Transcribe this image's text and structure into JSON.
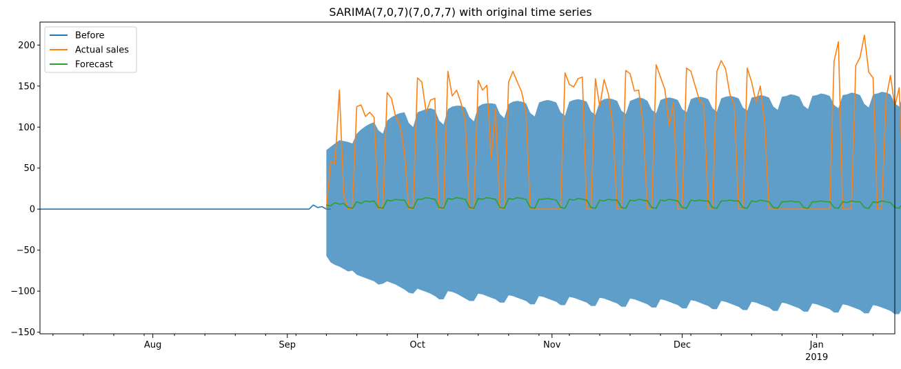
{
  "chart_data": {
    "type": "line",
    "title": "SARIMA(7,0,7)(7,0,7,7) with original time series",
    "xlabel": "",
    "ylabel": "",
    "x_axis": {
      "type": "date",
      "range": [
        "2018-07-06",
        "2019-01-19"
      ],
      "major_ticks": [
        {
          "date": "2018-08-01",
          "label": "Aug",
          "sublabel": ""
        },
        {
          "date": "2018-09-01",
          "label": "Sep",
          "sublabel": ""
        },
        {
          "date": "2018-10-01",
          "label": "Oct",
          "sublabel": ""
        },
        {
          "date": "2018-11-01",
          "label": "Nov",
          "sublabel": ""
        },
        {
          "date": "2018-12-01",
          "label": "Dec",
          "sublabel": ""
        },
        {
          "date": "2019-01-01",
          "label": "Jan",
          "sublabel": "2019"
        }
      ]
    },
    "y_axis": {
      "range": [
        -152,
        228
      ],
      "ticks": [
        -150,
        -100,
        -50,
        0,
        50,
        100,
        150,
        200
      ],
      "tick_labels": [
        "−150",
        "−100",
        "−50",
        "0",
        "50",
        "100",
        "150",
        "200"
      ]
    },
    "grid": false,
    "legend": {
      "position": "top-left",
      "entries": [
        {
          "label": "Before",
          "color": "#1f77b4"
        },
        {
          "label": "Actual sales",
          "color": "#ff7f0e"
        },
        {
          "label": "Forecast",
          "color": "#2ca02c"
        }
      ]
    },
    "series": [
      {
        "name": "Before",
        "color": "#1f77b4",
        "start_date": "2018-07-06",
        "values": [
          0,
          0,
          0,
          0,
          0,
          0,
          0,
          0,
          0,
          0,
          0,
          0,
          0,
          0,
          0,
          0,
          0,
          0,
          0,
          0,
          0,
          0,
          0,
          0,
          0,
          0,
          0,
          0,
          0,
          0,
          0,
          0,
          0,
          0,
          0,
          0,
          0,
          0,
          0,
          0,
          0,
          0,
          0,
          0,
          0,
          0,
          0,
          0,
          0,
          0,
          0,
          0,
          0,
          0,
          0,
          0,
          0,
          0,
          0,
          0,
          0,
          0,
          0,
          5,
          2,
          3,
          0,
          0
        ]
      },
      {
        "name": "Actual sales",
        "color": "#ff7f0e",
        "start_date": "2018-09-10",
        "values": [
          0,
          58,
          55,
          145,
          18,
          0,
          0,
          125,
          127,
          113,
          118,
          112,
          0,
          0,
          142,
          135,
          112,
          102,
          70,
          0,
          0,
          160,
          155,
          118,
          133,
          135,
          0,
          0,
          168,
          138,
          145,
          130,
          108,
          0,
          0,
          157,
          145,
          151,
          62,
          122,
          0,
          0,
          155,
          168,
          155,
          143,
          118,
          0,
          0,
          0,
          0,
          0,
          0,
          0,
          0,
          166,
          152,
          149,
          159,
          161,
          0,
          0,
          159,
          125,
          158,
          140,
          103,
          0,
          0,
          169,
          165,
          144,
          145,
          103,
          0,
          0,
          176,
          161,
          146,
          102,
          130,
          0,
          0,
          172,
          168,
          150,
          132,
          128,
          0,
          0,
          168,
          181,
          171,
          140,
          128,
          0,
          0,
          172,
          155,
          130,
          150,
          105,
          0,
          0,
          0,
          0,
          0,
          0,
          0,
          0,
          0,
          0,
          0,
          0,
          0,
          0,
          0,
          180,
          204,
          0,
          0,
          0,
          175,
          185,
          212,
          167,
          160,
          0,
          0,
          135,
          163,
          125,
          148,
          22,
          0
        ]
      },
      {
        "name": "Forecast",
        "color": "#2ca02c",
        "start_date": "2018-09-10",
        "values": [
          5,
          4,
          8,
          6,
          7,
          2,
          1,
          9,
          7,
          10,
          9,
          10,
          2,
          1,
          11,
          10,
          12,
          11,
          11,
          2,
          1,
          12,
          12,
          14,
          13,
          12,
          2,
          1,
          13,
          12,
          14,
          13,
          12,
          2,
          1,
          13,
          12,
          14,
          13,
          12,
          2,
          1,
          13,
          12,
          14,
          13,
          12,
          2,
          1,
          12,
          12,
          13,
          12,
          11,
          2,
          1,
          12,
          11,
          13,
          12,
          11,
          2,
          1,
          11,
          10,
          12,
          11,
          11,
          2,
          1,
          11,
          10,
          12,
          11,
          10,
          2,
          1,
          11,
          10,
          12,
          11,
          10,
          2,
          1,
          11,
          10,
          11,
          10,
          10,
          2,
          1,
          10,
          10,
          11,
          10,
          10,
          2,
          1,
          10,
          9,
          11,
          10,
          9,
          2,
          1,
          9,
          9,
          10,
          9,
          9,
          2,
          1,
          9,
          9,
          10,
          9,
          9,
          2,
          1,
          9,
          8,
          10,
          9,
          9,
          2,
          1,
          9,
          8,
          10,
          9,
          8,
          2,
          1,
          8,
          8,
          9,
          9,
          8,
          2
        ]
      },
      {
        "name": "",
        "kind": "confidence_band",
        "color": "#5f9ec9",
        "start_date": "2018-09-10",
        "upper": [
          72,
          76,
          80,
          84,
          83,
          82,
          80,
          92,
          97,
          101,
          104,
          106,
          96,
          92,
          108,
          112,
          115,
          117,
          118,
          105,
          100,
          118,
          120,
          122,
          123,
          121,
          108,
          103,
          122,
          125,
          126,
          126,
          124,
          112,
          107,
          125,
          128,
          129,
          129,
          128,
          116,
          111,
          128,
          131,
          132,
          131,
          129,
          117,
          113,
          130,
          132,
          133,
          132,
          130,
          118,
          114,
          131,
          133,
          134,
          133,
          131,
          119,
          115,
          131,
          134,
          135,
          134,
          132,
          120,
          116,
          132,
          134,
          136,
          135,
          132,
          121,
          117,
          133,
          135,
          136,
          135,
          133,
          122,
          118,
          134,
          136,
          137,
          136,
          134,
          123,
          119,
          135,
          137,
          138,
          137,
          135,
          124,
          120,
          136,
          137,
          139,
          138,
          136,
          125,
          121,
          137,
          138,
          140,
          139,
          137,
          126,
          122,
          138,
          139,
          141,
          140,
          138,
          127,
          123,
          139,
          140,
          142,
          141,
          139,
          128,
          124,
          140,
          141,
          143,
          142,
          140,
          129,
          125,
          141,
          142,
          143,
          142,
          140,
          129,
          125,
          141,
          142,
          143,
          142,
          135
        ],
        "lower": [
          -57,
          -65,
          -68,
          -70,
          -73,
          -76,
          -75,
          -80,
          -82,
          -84,
          -86,
          -88,
          -92,
          -91,
          -88,
          -90,
          -92,
          -95,
          -98,
          -102,
          -103,
          -97,
          -99,
          -101,
          -103,
          -106,
          -110,
          -110,
          -100,
          -101,
          -103,
          -106,
          -109,
          -112,
          -112,
          -103,
          -104,
          -106,
          -108,
          -110,
          -114,
          -114,
          -105,
          -106,
          -108,
          -110,
          -112,
          -116,
          -116,
          -106,
          -107,
          -109,
          -111,
          -113,
          -117,
          -117,
          -107,
          -108,
          -110,
          -112,
          -114,
          -118,
          -118,
          -108,
          -109,
          -111,
          -113,
          -115,
          -119,
          -119,
          -109,
          -110,
          -112,
          -114,
          -116,
          -120,
          -120,
          -110,
          -111,
          -113,
          -115,
          -117,
          -121,
          -121,
          -111,
          -112,
          -114,
          -116,
          -118,
          -122,
          -122,
          -112,
          -113,
          -115,
          -117,
          -119,
          -123,
          -123,
          -113,
          -114,
          -116,
          -118,
          -120,
          -124,
          -124,
          -114,
          -115,
          -117,
          -119,
          -121,
          -125,
          -125,
          -115,
          -116,
          -118,
          -120,
          -122,
          -126,
          -126,
          -116,
          -117,
          -119,
          -121,
          -123,
          -127,
          -127,
          -117,
          -118,
          -120,
          -122,
          -124,
          -128,
          -128,
          -118,
          -119,
          -121,
          -123,
          -125,
          -129,
          -129,
          -119,
          -120,
          -122,
          -124,
          -132
        ]
      }
    ]
  }
}
